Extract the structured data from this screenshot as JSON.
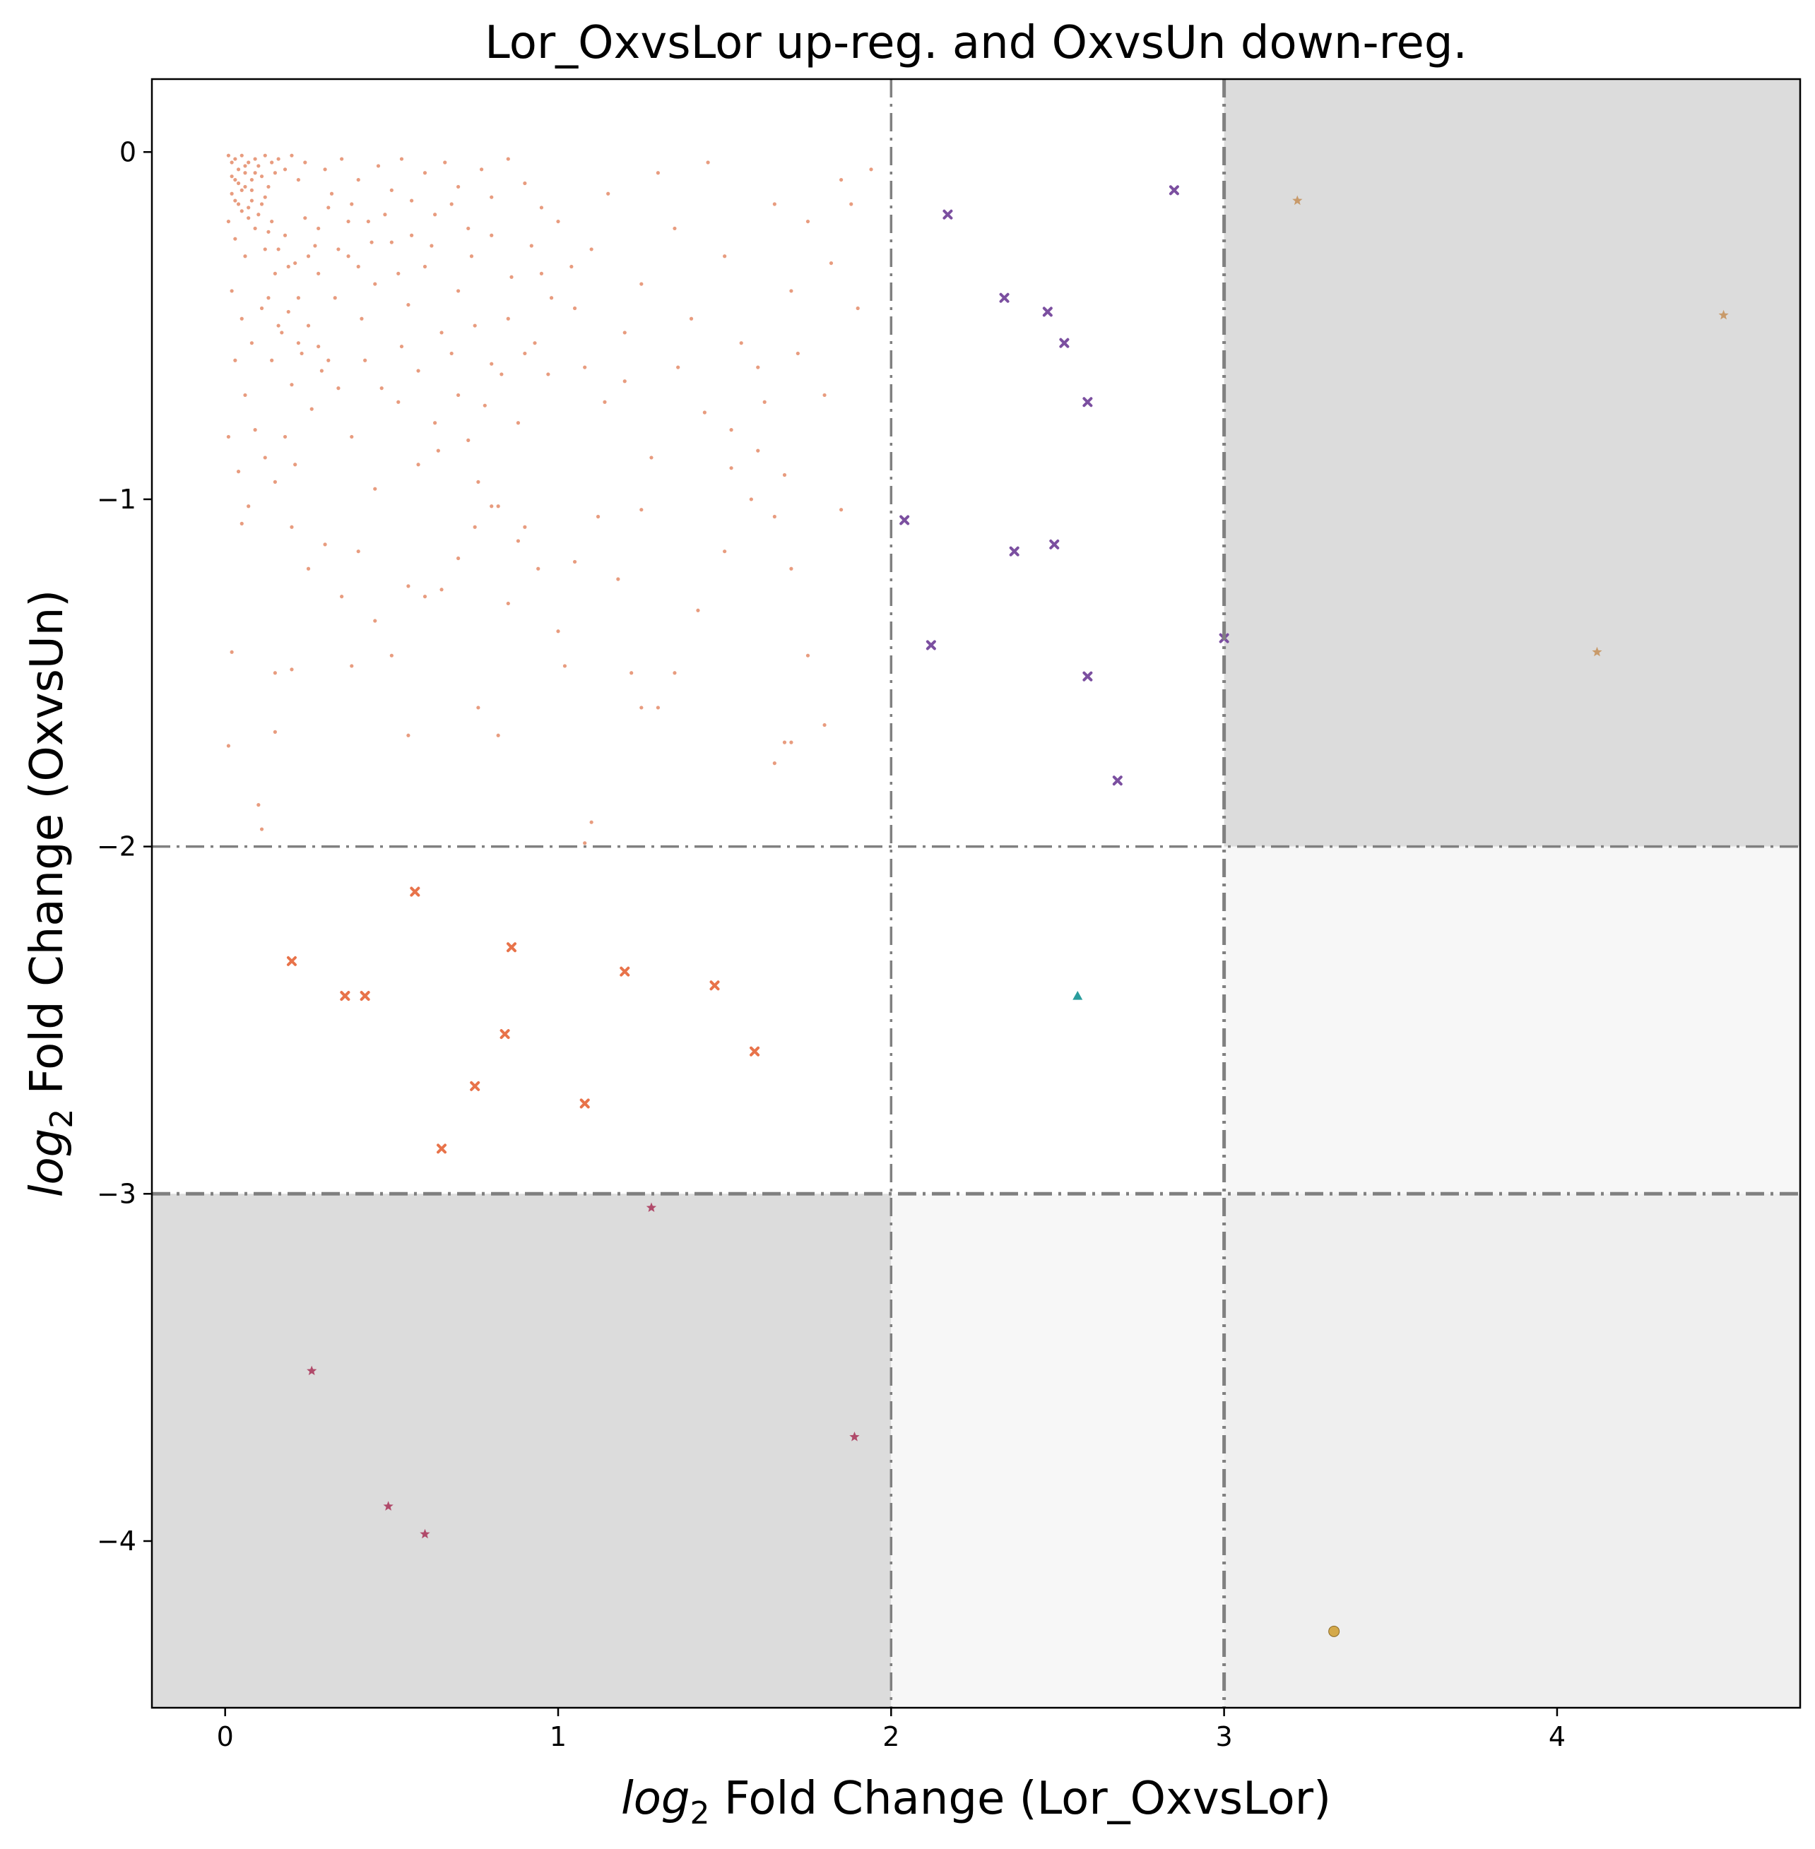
{
  "chart_data": {
    "type": "scatter",
    "title": "Lor_OxvsLor up-reg. and OxvsUn down-reg.",
    "xlabel": {
      "log": "log",
      "sub": "2",
      "rest": " Fold Change (Lor_OxvsLor)"
    },
    "ylabel": {
      "log": "log",
      "sub": "2",
      "rest": " Fold Change (OxvsUn)"
    },
    "xlim": [
      -0.22,
      4.73
    ],
    "ylim": [
      -4.48,
      0.21
    ],
    "xticks": [
      0,
      1,
      2,
      3,
      4
    ],
    "yticks": [
      0,
      -1,
      -2,
      -3,
      -4
    ],
    "ytick_labels": [
      "0",
      "−1",
      "−2",
      "−3",
      "−4"
    ],
    "thresholds": {
      "x": [
        2,
        3
      ],
      "y": [
        -2,
        -3
      ]
    },
    "regions": [
      {
        "x": [
          3,
          4.73
        ],
        "y": [
          -2,
          0.21
        ],
        "color": "#dcdcdc"
      },
      {
        "x": [
          -0.22,
          2
        ],
        "y": [
          -4.48,
          -3
        ],
        "color": "#dcdcdc"
      },
      {
        "x": [
          3,
          4.73
        ],
        "y": [
          -3,
          -2
        ],
        "color": "#f7f7f7"
      },
      {
        "x": [
          2,
          3
        ],
        "y": [
          -4.48,
          -3
        ],
        "color": "#f7f7f7"
      },
      {
        "x": [
          3,
          4.73
        ],
        "y": [
          -4.48,
          -3
        ],
        "color": "#efefef"
      }
    ],
    "series": [
      {
        "marker": "dot",
        "color": "#e07b54",
        "points": [
          [
            0.01,
            -0.01
          ],
          [
            0.02,
            -0.03
          ],
          [
            0.03,
            -0.02
          ],
          [
            0.04,
            -0.05
          ],
          [
            0.05,
            -0.01
          ],
          [
            0.06,
            -0.06
          ],
          [
            0.07,
            -0.03
          ],
          [
            0.08,
            -0.08
          ],
          [
            0.09,
            -0.02
          ],
          [
            0.1,
            -0.04
          ],
          [
            0.11,
            -0.07
          ],
          [
            0.12,
            -0.01
          ],
          [
            0.13,
            -0.1
          ],
          [
            0.14,
            -0.03
          ],
          [
            0.15,
            -0.06
          ],
          [
            0.16,
            -0.02
          ],
          [
            0.18,
            -0.05
          ],
          [
            0.2,
            -0.01
          ],
          [
            0.22,
            -0.08
          ],
          [
            0.24,
            -0.03
          ],
          [
            0.02,
            -0.12
          ],
          [
            0.04,
            -0.15
          ],
          [
            0.06,
            -0.1
          ],
          [
            0.08,
            -0.14
          ],
          [
            0.1,
            -0.18
          ],
          [
            0.12,
            -0.13
          ],
          [
            0.14,
            -0.2
          ],
          [
            0.03,
            -0.08
          ],
          [
            0.05,
            -0.11
          ],
          [
            0.07,
            -0.16
          ],
          [
            0.01,
            -0.2
          ],
          [
            0.03,
            -0.25
          ],
          [
            0.06,
            -0.3
          ],
          [
            0.09,
            -0.22
          ],
          [
            0.12,
            -0.28
          ],
          [
            0.15,
            -0.35
          ],
          [
            0.18,
            -0.24
          ],
          [
            0.21,
            -0.32
          ],
          [
            0.24,
            -0.19
          ],
          [
            0.27,
            -0.27
          ],
          [
            0.3,
            -0.05
          ],
          [
            0.32,
            -0.12
          ],
          [
            0.35,
            -0.02
          ],
          [
            0.38,
            -0.15
          ],
          [
            0.4,
            -0.08
          ],
          [
            0.43,
            -0.2
          ],
          [
            0.46,
            -0.04
          ],
          [
            0.5,
            -0.11
          ],
          [
            0.53,
            -0.02
          ],
          [
            0.56,
            -0.14
          ],
          [
            0.6,
            -0.06
          ],
          [
            0.63,
            -0.18
          ],
          [
            0.66,
            -0.03
          ],
          [
            0.7,
            -0.1
          ],
          [
            0.73,
            -0.22
          ],
          [
            0.77,
            -0.05
          ],
          [
            0.8,
            -0.13
          ],
          [
            0.85,
            -0.02
          ],
          [
            0.9,
            -0.09
          ],
          [
            0.95,
            -0.16
          ],
          [
            0.28,
            -0.35
          ],
          [
            0.33,
            -0.42
          ],
          [
            0.37,
            -0.3
          ],
          [
            0.41,
            -0.48
          ],
          [
            0.45,
            -0.38
          ],
          [
            0.5,
            -0.26
          ],
          [
            0.55,
            -0.44
          ],
          [
            0.6,
            -0.33
          ],
          [
            0.65,
            -0.52
          ],
          [
            0.7,
            -0.4
          ],
          [
            0.02,
            -0.4
          ],
          [
            0.05,
            -0.48
          ],
          [
            0.08,
            -0.55
          ],
          [
            0.11,
            -0.45
          ],
          [
            0.14,
            -0.6
          ],
          [
            0.17,
            -0.52
          ],
          [
            0.2,
            -0.67
          ],
          [
            0.23,
            -0.58
          ],
          [
            0.26,
            -0.74
          ],
          [
            0.29,
            -0.63
          ],
          [
            0.03,
            -0.6
          ],
          [
            0.06,
            -0.7
          ],
          [
            0.09,
            -0.8
          ],
          [
            0.12,
            -0.88
          ],
          [
            0.15,
            -0.95
          ],
          [
            0.18,
            -0.82
          ],
          [
            0.21,
            -0.9
          ],
          [
            0.01,
            -0.82
          ],
          [
            0.04,
            -0.92
          ],
          [
            0.07,
            -1.02
          ],
          [
            0.75,
            -0.5
          ],
          [
            0.8,
            -0.61
          ],
          [
            0.85,
            -0.48
          ],
          [
            0.9,
            -0.58
          ],
          [
            0.95,
            -0.35
          ],
          [
            1.0,
            -0.2
          ],
          [
            1.05,
            -0.45
          ],
          [
            1.1,
            -0.28
          ],
          [
            1.15,
            -0.12
          ],
          [
            1.2,
            -0.52
          ],
          [
            1.25,
            -0.38
          ],
          [
            1.3,
            -0.06
          ],
          [
            1.35,
            -0.22
          ],
          [
            1.4,
            -0.48
          ],
          [
            1.45,
            -0.03
          ],
          [
            1.5,
            -0.3
          ],
          [
            1.55,
            -0.55
          ],
          [
            1.6,
            -0.62
          ],
          [
            1.65,
            -0.15
          ],
          [
            1.7,
            -0.4
          ],
          [
            1.75,
            -0.2
          ],
          [
            1.8,
            -0.7
          ],
          [
            1.85,
            -0.08
          ],
          [
            1.9,
            -0.45
          ],
          [
            1.94,
            -0.05
          ],
          [
            1.88,
            -0.15
          ],
          [
            1.82,
            -0.32
          ],
          [
            1.72,
            -0.58
          ],
          [
            1.62,
            -0.72
          ],
          [
            1.52,
            -0.8
          ],
          [
            0.38,
            -0.82
          ],
          [
            0.45,
            -0.97
          ],
          [
            0.52,
            -0.72
          ],
          [
            0.58,
            -0.9
          ],
          [
            0.64,
            -0.86
          ],
          [
            0.7,
            -0.7
          ],
          [
            0.76,
            -0.95
          ],
          [
            0.82,
            -1.02
          ],
          [
            0.88,
            -1.12
          ],
          [
            0.94,
            -1.2
          ],
          [
            0.2,
            -1.08
          ],
          [
            0.25,
            -1.2
          ],
          [
            0.3,
            -1.13
          ],
          [
            0.35,
            -1.28
          ],
          [
            0.4,
            -1.15
          ],
          [
            0.45,
            -1.35
          ],
          [
            0.5,
            -1.45
          ],
          [
            0.55,
            -1.25
          ],
          [
            0.6,
            -1.28
          ],
          [
            0.65,
            -1.26
          ],
          [
            0.7,
            -1.17
          ],
          [
            0.75,
            -1.08
          ],
          [
            0.8,
            -1.02
          ],
          [
            0.85,
            -1.3
          ],
          [
            0.9,
            -1.08
          ],
          [
            1.0,
            -1.38
          ],
          [
            1.05,
            -1.18
          ],
          [
            1.12,
            -1.05
          ],
          [
            1.18,
            -1.23
          ],
          [
            1.25,
            -1.03
          ],
          [
            1.3,
            -1.6
          ],
          [
            1.35,
            -1.5
          ],
          [
            1.42,
            -1.32
          ],
          [
            1.5,
            -1.15
          ],
          [
            1.58,
            -1.0
          ],
          [
            1.65,
            -1.05
          ],
          [
            1.7,
            -1.2
          ],
          [
            1.75,
            -1.45
          ],
          [
            1.8,
            -1.65
          ],
          [
            1.68,
            -1.7
          ],
          [
            0.01,
            -1.71
          ],
          [
            0.02,
            -1.44
          ],
          [
            0.05,
            -1.07
          ],
          [
            0.1,
            -1.88
          ],
          [
            0.11,
            -1.95
          ],
          [
            0.15,
            -1.5
          ],
          [
            0.15,
            -1.67
          ],
          [
            0.2,
            -1.49
          ],
          [
            0.38,
            -1.48
          ],
          [
            0.55,
            -1.68
          ],
          [
            0.76,
            -1.6
          ],
          [
            0.82,
            -1.68
          ],
          [
            1.02,
            -1.48
          ],
          [
            1.08,
            -1.99
          ],
          [
            1.1,
            -1.93
          ],
          [
            1.25,
            -1.6
          ],
          [
            1.22,
            -1.5
          ],
          [
            1.65,
            -1.76
          ],
          [
            1.7,
            -1.7
          ],
          [
            1.85,
            -1.03
          ],
          [
            0.02,
            -0.07
          ],
          [
            0.04,
            -0.09
          ],
          [
            0.06,
            -0.04
          ],
          [
            0.08,
            -0.11
          ],
          [
            0.03,
            -0.14
          ],
          [
            0.05,
            -0.17
          ],
          [
            0.07,
            -0.19
          ],
          [
            0.09,
            -0.06
          ],
          [
            0.11,
            -0.15
          ],
          [
            0.13,
            -0.23
          ],
          [
            0.16,
            -0.28
          ],
          [
            0.19,
            -0.33
          ],
          [
            0.22,
            -0.42
          ],
          [
            0.25,
            -0.3
          ],
          [
            0.28,
            -0.22
          ],
          [
            0.31,
            -0.16
          ],
          [
            0.34,
            -0.28
          ],
          [
            0.37,
            -0.2
          ],
          [
            0.4,
            -0.33
          ],
          [
            0.44,
            -0.26
          ],
          [
            0.48,
            -0.18
          ],
          [
            0.52,
            -0.35
          ],
          [
            0.56,
            -0.24
          ],
          [
            0.62,
            -0.27
          ],
          [
            0.68,
            -0.15
          ],
          [
            0.74,
            -0.3
          ],
          [
            0.8,
            -0.24
          ],
          [
            0.86,
            -0.36
          ],
          [
            0.92,
            -0.27
          ],
          [
            0.98,
            -0.42
          ],
          [
            1.04,
            -0.33
          ],
          [
            1.08,
            -0.62
          ],
          [
            1.14,
            -0.72
          ],
          [
            1.2,
            -0.66
          ],
          [
            1.28,
            -0.88
          ],
          [
            1.36,
            -0.62
          ],
          [
            1.44,
            -0.75
          ],
          [
            1.52,
            -0.91
          ],
          [
            1.6,
            -0.86
          ],
          [
            1.68,
            -0.93
          ],
          [
            0.13,
            -0.42
          ],
          [
            0.16,
            -0.5
          ],
          [
            0.19,
            -0.46
          ],
          [
            0.22,
            -0.55
          ],
          [
            0.25,
            -0.5
          ],
          [
            0.28,
            -0.56
          ],
          [
            0.31,
            -0.6
          ],
          [
            0.34,
            -0.68
          ],
          [
            0.42,
            -0.6
          ],
          [
            0.47,
            -0.68
          ],
          [
            0.53,
            -0.56
          ],
          [
            0.58,
            -0.63
          ],
          [
            0.63,
            -0.78
          ],
          [
            0.68,
            -0.58
          ],
          [
            0.73,
            -0.83
          ],
          [
            0.78,
            -0.73
          ],
          [
            0.83,
            -0.64
          ],
          [
            0.88,
            -0.78
          ],
          [
            0.93,
            -0.55
          ],
          [
            0.97,
            -0.64
          ]
        ]
      },
      {
        "marker": "x",
        "color": "#e8734a",
        "points": [
          [
            0.2,
            -2.33
          ],
          [
            0.36,
            -2.43
          ],
          [
            0.42,
            -2.43
          ],
          [
            0.57,
            -2.13
          ],
          [
            0.65,
            -2.87
          ],
          [
            0.75,
            -2.69
          ],
          [
            0.84,
            -2.54
          ],
          [
            0.86,
            -2.29
          ],
          [
            1.08,
            -2.74
          ],
          [
            1.2,
            -2.36
          ],
          [
            1.47,
            -2.4
          ],
          [
            1.59,
            -2.59
          ]
        ]
      },
      {
        "marker": "x",
        "color": "#7b4fa0",
        "points": [
          [
            2.04,
            -1.06
          ],
          [
            2.12,
            -1.42
          ],
          [
            2.17,
            -0.18
          ],
          [
            2.34,
            -0.42
          ],
          [
            2.37,
            -1.15
          ],
          [
            2.47,
            -0.46
          ],
          [
            2.49,
            -1.13
          ],
          [
            2.52,
            -0.55
          ],
          [
            2.59,
            -0.72
          ],
          [
            2.59,
            -1.51
          ],
          [
            2.68,
            -1.81
          ],
          [
            2.85,
            -0.11
          ],
          [
            3.0,
            -1.4
          ]
        ]
      },
      {
        "marker": "triangle",
        "color": "#2a9d9d",
        "points": [
          [
            2.56,
            -2.43
          ]
        ]
      },
      {
        "marker": "star",
        "color": "#b04a6a",
        "points": [
          [
            0.26,
            -3.51
          ],
          [
            0.49,
            -3.9
          ],
          [
            0.6,
            -3.98
          ],
          [
            1.28,
            -3.04
          ],
          [
            1.89,
            -3.7
          ]
        ]
      },
      {
        "marker": "star",
        "color": "#c89a6a",
        "points": [
          [
            3.22,
            -0.14
          ],
          [
            4.12,
            -1.44
          ],
          [
            4.5,
            -0.47
          ]
        ]
      },
      {
        "marker": "circle",
        "color": "#d4a94a",
        "points": [
          [
            3.33,
            -4.26
          ]
        ]
      }
    ]
  }
}
